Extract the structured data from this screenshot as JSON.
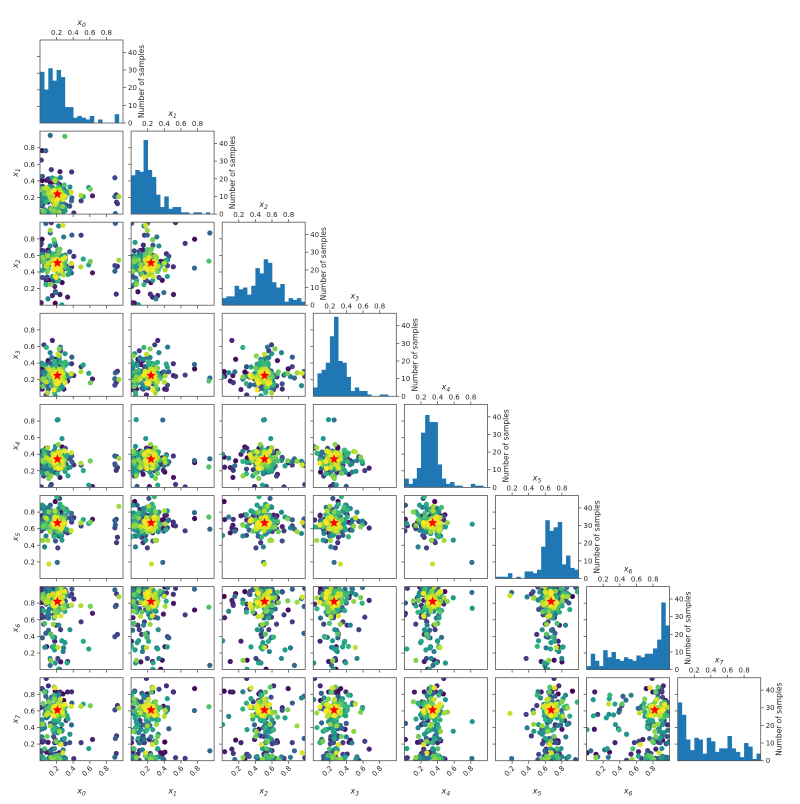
{
  "figure": {
    "title": "",
    "type": "corner / pair plot (partial dependence style)",
    "histogram_color": "#1f77b4",
    "scatter_colormap": "viridis",
    "star_color": "#ff0000",
    "axis_color": "#555555"
  },
  "chart_data": [
    {
      "type": "bar",
      "title": "x_0",
      "panel": "diag-0",
      "xlabel": "x_0",
      "ylabel": "Number of samples",
      "xticks": [
        "0.2",
        "0.4",
        "0.6",
        "0.8"
      ],
      "yticks": [
        "0",
        "10",
        "20",
        "30",
        "40"
      ],
      "ylim": [
        0,
        47
      ],
      "bins": [
        0,
        0.05,
        0.1,
        0.15,
        0.2,
        0.25,
        0.3,
        0.35,
        0.4,
        0.45,
        0.5,
        0.55,
        0.6,
        0.65,
        0.7,
        0.75,
        0.8,
        0.85,
        0.9,
        0.95,
        1.0
      ],
      "values": [
        29,
        19,
        31,
        24,
        30,
        26,
        9,
        9,
        3,
        4,
        3,
        2,
        4,
        0,
        2,
        0,
        0,
        0,
        5,
        0
      ]
    },
    {
      "type": "bar",
      "title": "x_1",
      "panel": "diag-1",
      "xlabel": "x_1",
      "ylabel": "Number of samples",
      "xticks": [
        "0.2",
        "0.4",
        "0.6",
        "0.8"
      ],
      "yticks": [
        "0",
        "10",
        "20",
        "30",
        "40"
      ],
      "ylim": [
        0,
        47
      ],
      "values": [
        22,
        25,
        24,
        42,
        25,
        21,
        11,
        4,
        10,
        3,
        4,
        4,
        1,
        1,
        0,
        1,
        1,
        0,
        1,
        0
      ]
    },
    {
      "type": "bar",
      "title": "x_2",
      "panel": "diag-2",
      "xlabel": "x_2",
      "ylabel": "Number of samples",
      "xticks": [
        "0.2",
        "0.4",
        "0.6",
        "0.8"
      ],
      "yticks": [
        "0",
        "10",
        "20",
        "30",
        "40"
      ],
      "ylim": [
        0,
        47
      ],
      "values": [
        4,
        5,
        5,
        11,
        9,
        10,
        6,
        11,
        21,
        18,
        26,
        24,
        13,
        10,
        12,
        2,
        4,
        3,
        4,
        2
      ]
    },
    {
      "type": "bar",
      "title": "x_3",
      "panel": "diag-3",
      "xlabel": "x_3",
      "ylabel": "Number of samples",
      "xticks": [
        "0.2",
        "0.4",
        "0.6",
        "0.8"
      ],
      "yticks": [
        "0",
        "10",
        "20",
        "30",
        "40"
      ],
      "ylim": [
        0,
        47
      ],
      "values": [
        5,
        13,
        15,
        19,
        34,
        45,
        20,
        19,
        11,
        3,
        5,
        3,
        3,
        1,
        0,
        0,
        1,
        1,
        0,
        0
      ]
    },
    {
      "type": "bar",
      "title": "x_4",
      "panel": "diag-4",
      "xlabel": "x_4",
      "ylabel": "Number of samples",
      "xticks": [
        "0.2",
        "0.4",
        "0.6",
        "0.8"
      ],
      "yticks": [
        "0",
        "10",
        "20",
        "30",
        "40"
      ],
      "ylim": [
        0,
        47
      ],
      "values": [
        5,
        2,
        5,
        11,
        31,
        41,
        37,
        37,
        13,
        5,
        2,
        3,
        1,
        1,
        0,
        0,
        2,
        1,
        1,
        0
      ]
    },
    {
      "type": "bar",
      "title": "x_5",
      "panel": "diag-5",
      "xlabel": "x_5",
      "ylabel": "Number of samples",
      "xticks": [
        "0.2",
        "0.4",
        "0.6",
        "0.8"
      ],
      "yticks": [
        "0",
        "10",
        "20",
        "30",
        "40"
      ],
      "ylim": [
        0,
        47
      ],
      "values": [
        1,
        1,
        1,
        3,
        0,
        1,
        0,
        4,
        4,
        3,
        5,
        18,
        33,
        27,
        29,
        32,
        8,
        13,
        6,
        5
      ]
    },
    {
      "type": "bar",
      "title": "x_6",
      "panel": "diag-6",
      "xlabel": "x_6",
      "ylabel": "Number of samples",
      "xticks": [
        "0.2",
        "0.4",
        "0.6",
        "0.8"
      ],
      "yticks": [
        "0",
        "10",
        "20",
        "30",
        "40"
      ],
      "ylim": [
        0,
        47
      ],
      "values": [
        2,
        9,
        5,
        2,
        11,
        7,
        10,
        6,
        5,
        7,
        6,
        5,
        8,
        7,
        9,
        9,
        12,
        17,
        38,
        25
      ]
    },
    {
      "type": "bar",
      "title": "x_7",
      "panel": "diag-7",
      "xlabel": "x_7",
      "ylabel": "Number of samples",
      "xticks": [
        "0.2",
        "0.4",
        "0.6",
        "0.8"
      ],
      "yticks": [
        "0",
        "10",
        "20",
        "30",
        "40"
      ],
      "ylim": [
        0,
        47
      ],
      "values": [
        33,
        26,
        12,
        6,
        13,
        12,
        4,
        13,
        11,
        5,
        7,
        7,
        14,
        7,
        5,
        2,
        10,
        8,
        1,
        4
      ]
    },
    {
      "type": "scatter",
      "title": "pairwise sample scatter (lower triangle)",
      "variables": [
        "x_0",
        "x_1",
        "x_2",
        "x_3",
        "x_4",
        "x_5",
        "x_6",
        "x_7"
      ],
      "best_point_marker": "red star",
      "best_point": [
        0.21,
        0.24,
        0.51,
        0.25,
        0.34,
        0.67,
        0.82,
        0.61
      ],
      "xlim": [
        0,
        1
      ],
      "ylim": [
        0,
        1
      ],
      "tick_labels": [
        "0.2",
        "0.4",
        "0.6",
        "0.8"
      ],
      "color_encoding": "viridis (iteration order, dark purple = early, yellow = late)"
    }
  ],
  "labels": {
    "vars": [
      "x",
      "x",
      "x",
      "x",
      "x",
      "x",
      "x",
      "x"
    ],
    "subs": [
      "0",
      "1",
      "2",
      "3",
      "4",
      "5",
      "6",
      "7"
    ],
    "ylabel_hist": "Number of samples"
  }
}
